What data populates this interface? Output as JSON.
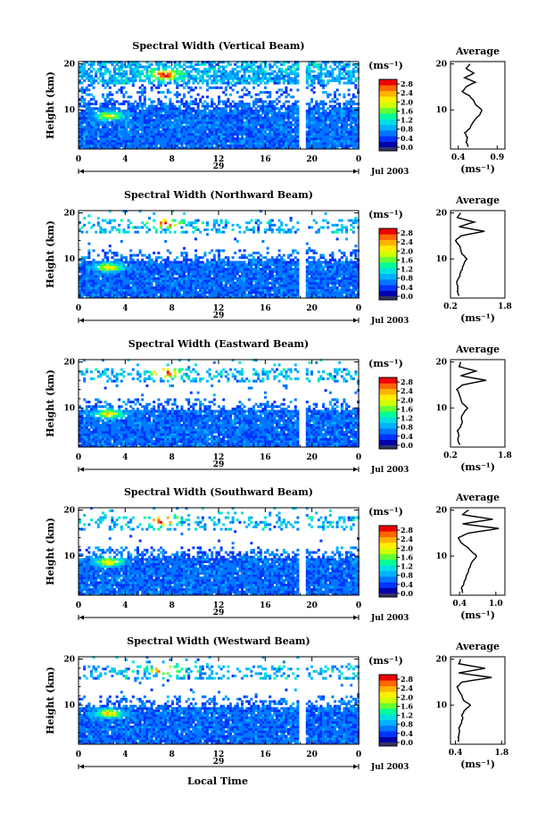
{
  "figure": {
    "xlabel": "Local Time",
    "date_label": "Jul 2003",
    "day_label": "29",
    "units_label": "(ms⁻¹)",
    "avg_title": "Average",
    "colors": [
      "#0000aa",
      "#0033ff",
      "#0077ff",
      "#00b2ff",
      "#00e0e0",
      "#00ff9a",
      "#66ff33",
      "#d0ff00",
      "#ffee00",
      "#ffb300",
      "#ff6600",
      "#ee0000"
    ]
  },
  "chart_data": [
    {
      "type": "heatmap",
      "title": "Spectral Width (Vertical Beam)",
      "ylabel": "Height (km)",
      "x_ticks": [
        "0",
        "4",
        "8",
        "12",
        "16",
        "20",
        "0"
      ],
      "y_ticks": [
        "10",
        "20"
      ],
      "xlim": [
        0,
        24
      ],
      "ylim": [
        1.5,
        20.5
      ],
      "colorbar_ticks": [
        "0.0",
        "0.4",
        "0.8",
        "1.2",
        "1.6",
        "2.0",
        "2.4",
        "2.8"
      ],
      "colorbar_range": [
        0,
        3.0
      ],
      "data_gap_hours": [
        18.7,
        19.3
      ],
      "hotspots": [
        {
          "t": 2.5,
          "h": 8.5,
          "v": 2.0
        },
        {
          "t": 7.3,
          "h": 17.5,
          "v": 2.6
        }
      ],
      "average_profile": {
        "title": "Average",
        "xlabel": "(ms⁻¹)",
        "x_ticks": [
          "0.4",
          "0.9"
        ],
        "x_tick_values": [
          0.4,
          0.9
        ],
        "xlim": [
          0.3,
          1.0
        ],
        "y_ticks": [
          "10",
          "20"
        ],
        "height_km": [
          2,
          3,
          4,
          5,
          6,
          7,
          8,
          9,
          10,
          11,
          12,
          13,
          14,
          15,
          16,
          17,
          18,
          19,
          20
        ],
        "width_ms": [
          0.53,
          0.5,
          0.52,
          0.48,
          0.55,
          0.58,
          0.62,
          0.68,
          0.7,
          0.63,
          0.6,
          0.55,
          0.45,
          0.5,
          0.62,
          0.48,
          0.6,
          0.5,
          0.55
        ]
      }
    },
    {
      "type": "heatmap",
      "title": "Spectral Width (Northward Beam)",
      "ylabel": "Height (km)",
      "x_ticks": [
        "0",
        "4",
        "8",
        "12",
        "16",
        "20",
        "0"
      ],
      "y_ticks": [
        "10",
        "20"
      ],
      "xlim": [
        0,
        24
      ],
      "ylim": [
        1.5,
        20.5
      ],
      "colorbar_ticks": [
        "0.0",
        "0.4",
        "0.8",
        "1.2",
        "1.6",
        "2.0",
        "2.4",
        "2.8"
      ],
      "colorbar_range": [
        0,
        3.0
      ],
      "data_gap_hours": [
        18.7,
        19.3
      ],
      "hotspots": [
        {
          "t": 2.5,
          "h": 8.0,
          "v": 2.1
        },
        {
          "t": 7.3,
          "h": 17.5,
          "v": 2.7
        }
      ],
      "average_profile": {
        "title": "Average",
        "xlabel": "(ms⁻¹)",
        "x_ticks": [
          "0.2",
          "1.8"
        ],
        "x_tick_values": [
          0.2,
          1.8
        ],
        "xlim": [
          0.2,
          1.8
        ],
        "y_ticks": [
          "10",
          "20"
        ],
        "height_km": [
          2,
          3,
          4,
          5,
          6,
          7,
          8,
          9,
          10,
          11,
          12,
          13,
          14,
          15,
          16,
          17,
          18,
          19,
          20
        ],
        "width_ms": [
          0.45,
          0.4,
          0.42,
          0.38,
          0.45,
          0.5,
          0.55,
          0.6,
          0.68,
          0.55,
          0.5,
          0.45,
          0.35,
          0.5,
          1.2,
          0.45,
          0.9,
          0.4,
          0.5
        ]
      }
    },
    {
      "type": "heatmap",
      "title": "Spectral Width (Eastward Beam)",
      "ylabel": "Height (km)",
      "x_ticks": [
        "0",
        "4",
        "8",
        "12",
        "16",
        "20",
        "0"
      ],
      "y_ticks": [
        "10",
        "20"
      ],
      "xlim": [
        0,
        24
      ],
      "ylim": [
        1.5,
        20.5
      ],
      "colorbar_ticks": [
        "0.0",
        "0.4",
        "0.8",
        "1.2",
        "1.6",
        "2.0",
        "2.4",
        "2.8"
      ],
      "colorbar_range": [
        0,
        3.0
      ],
      "data_gap_hours": [
        18.7,
        19.3
      ],
      "hotspots": [
        {
          "t": 2.5,
          "h": 8.5,
          "v": 2.1
        },
        {
          "t": 7.2,
          "h": 17.5,
          "v": 2.8
        }
      ],
      "average_profile": {
        "title": "Average",
        "xlabel": "(ms⁻¹)",
        "x_ticks": [
          "0.2",
          "1.8"
        ],
        "x_tick_values": [
          0.2,
          1.8
        ],
        "xlim": [
          0.2,
          1.8
        ],
        "y_ticks": [
          "10",
          "20"
        ],
        "height_km": [
          2,
          3,
          4,
          5,
          6,
          7,
          8,
          9,
          10,
          11,
          12,
          13,
          14,
          15,
          16,
          17,
          18,
          19,
          20
        ],
        "width_ms": [
          0.48,
          0.42,
          0.45,
          0.4,
          0.5,
          0.55,
          0.52,
          0.6,
          0.7,
          0.55,
          0.5,
          0.45,
          0.38,
          0.55,
          1.25,
          0.5,
          0.95,
          0.45,
          0.5
        ]
      }
    },
    {
      "type": "heatmap",
      "title": "Spectral Width (Southward Beam)",
      "ylabel": "Height (km)",
      "x_ticks": [
        "0",
        "4",
        "8",
        "12",
        "16",
        "20",
        "0"
      ],
      "y_ticks": [
        "10",
        "20"
      ],
      "xlim": [
        0,
        24
      ],
      "ylim": [
        1.5,
        20.5
      ],
      "colorbar_ticks": [
        "0.0",
        "0.4",
        "0.8",
        "1.2",
        "1.6",
        "2.0",
        "2.4",
        "2.8"
      ],
      "colorbar_range": [
        0,
        3.0
      ],
      "data_gap_hours": [
        18.7,
        19.3
      ],
      "hotspots": [
        {
          "t": 2.5,
          "h": 8.5,
          "v": 2.1
        },
        {
          "t": 7.2,
          "h": 17.5,
          "v": 2.6
        }
      ],
      "average_profile": {
        "title": "Average",
        "xlabel": "(ms⁻¹)",
        "x_ticks": [
          "0.4",
          "1.0"
        ],
        "x_tick_values": [
          0.4,
          1.0
        ],
        "xlim": [
          0.25,
          1.15
        ],
        "y_ticks": [
          "10",
          "20"
        ],
        "height_km": [
          2,
          3,
          4,
          5,
          6,
          7,
          8,
          9,
          10,
          11,
          12,
          13,
          14,
          15,
          16,
          17,
          18,
          19,
          20
        ],
        "width_ms": [
          0.45,
          0.43,
          0.47,
          0.5,
          0.52,
          0.55,
          0.58,
          0.62,
          0.68,
          0.6,
          0.52,
          0.42,
          0.38,
          0.55,
          1.05,
          0.45,
          0.95,
          0.45,
          0.55
        ]
      }
    },
    {
      "type": "heatmap",
      "title": "Spectral Width (Westward Beam)",
      "ylabel": "Height (km)",
      "x_ticks": [
        "0",
        "4",
        "8",
        "12",
        "16",
        "20",
        "0"
      ],
      "y_ticks": [
        "10",
        "20"
      ],
      "xlim": [
        0,
        24
      ],
      "ylim": [
        1.5,
        20.5
      ],
      "colorbar_ticks": [
        "0.0",
        "0.4",
        "0.8",
        "1.2",
        "1.6",
        "2.0",
        "2.4",
        "2.8"
      ],
      "colorbar_range": [
        0,
        3.0
      ],
      "data_gap_hours": [
        18.7,
        19.3
      ],
      "hotspots": [
        {
          "t": 2.5,
          "h": 8.0,
          "v": 2.1
        },
        {
          "t": 7.3,
          "h": 17.5,
          "v": 2.7
        }
      ],
      "average_profile": {
        "title": "Average",
        "xlabel": "(ms⁻¹)",
        "x_ticks": [
          "0.4",
          "1.8"
        ],
        "x_tick_values": [
          0.4,
          1.8
        ],
        "xlim": [
          0.25,
          1.9
        ],
        "y_ticks": [
          "10",
          "20"
        ],
        "height_km": [
          2,
          3,
          4,
          5,
          6,
          7,
          8,
          9,
          10,
          11,
          12,
          13,
          14,
          15,
          16,
          17,
          18,
          19,
          20
        ],
        "width_ms": [
          0.5,
          0.48,
          0.52,
          0.5,
          0.58,
          0.62,
          0.6,
          0.7,
          0.85,
          0.65,
          0.6,
          0.52,
          0.45,
          0.6,
          1.5,
          0.5,
          1.3,
          0.5,
          0.55
        ]
      }
    }
  ]
}
